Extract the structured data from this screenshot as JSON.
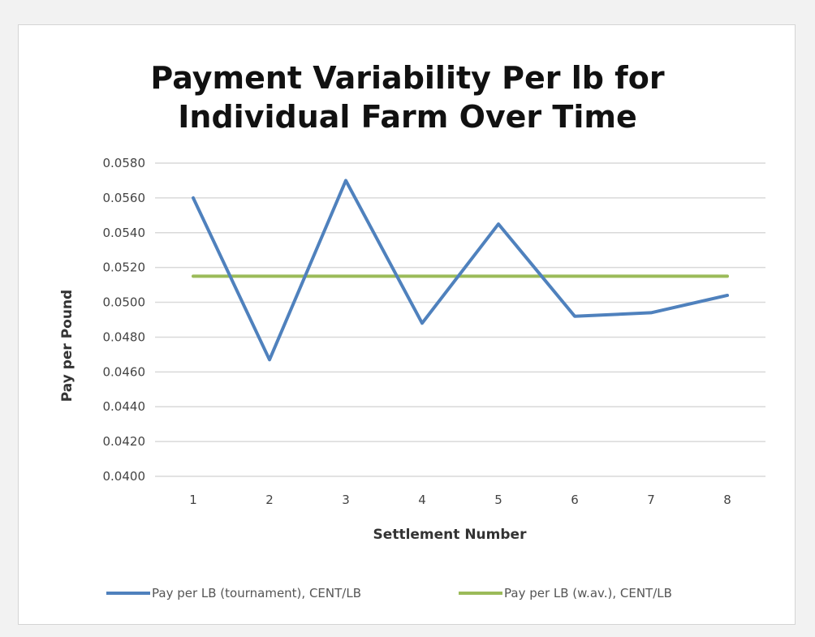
{
  "chart_data": {
    "type": "line",
    "title": [
      "Payment Variability Per lb for",
      "Individual Farm Over Time"
    ],
    "xlabel": "Settlement Number",
    "ylabel": "Pay per Pound",
    "x": [
      1,
      2,
      3,
      4,
      5,
      6,
      7,
      8
    ],
    "ylim": [
      0.04,
      0.058
    ],
    "yticks": [
      "0.0400",
      "0.0420",
      "0.0440",
      "0.0460",
      "0.0480",
      "0.0500",
      "0.0520",
      "0.0540",
      "0.0560",
      "0.0580"
    ],
    "grid": true,
    "legend_position": "bottom",
    "series": [
      {
        "name": "Pay per LB (tournament), CENT/LB",
        "color": "#4f81bd",
        "values": [
          0.056,
          0.0467,
          0.057,
          0.0488,
          0.0545,
          0.0492,
          0.0494,
          0.0504
        ]
      },
      {
        "name": "Pay per LB (w.av.), CENT/LB",
        "color": "#9bbb59",
        "values": [
          0.0515,
          0.0515,
          0.0515,
          0.0515,
          0.0515,
          0.0515,
          0.0515,
          0.0515
        ]
      }
    ]
  }
}
